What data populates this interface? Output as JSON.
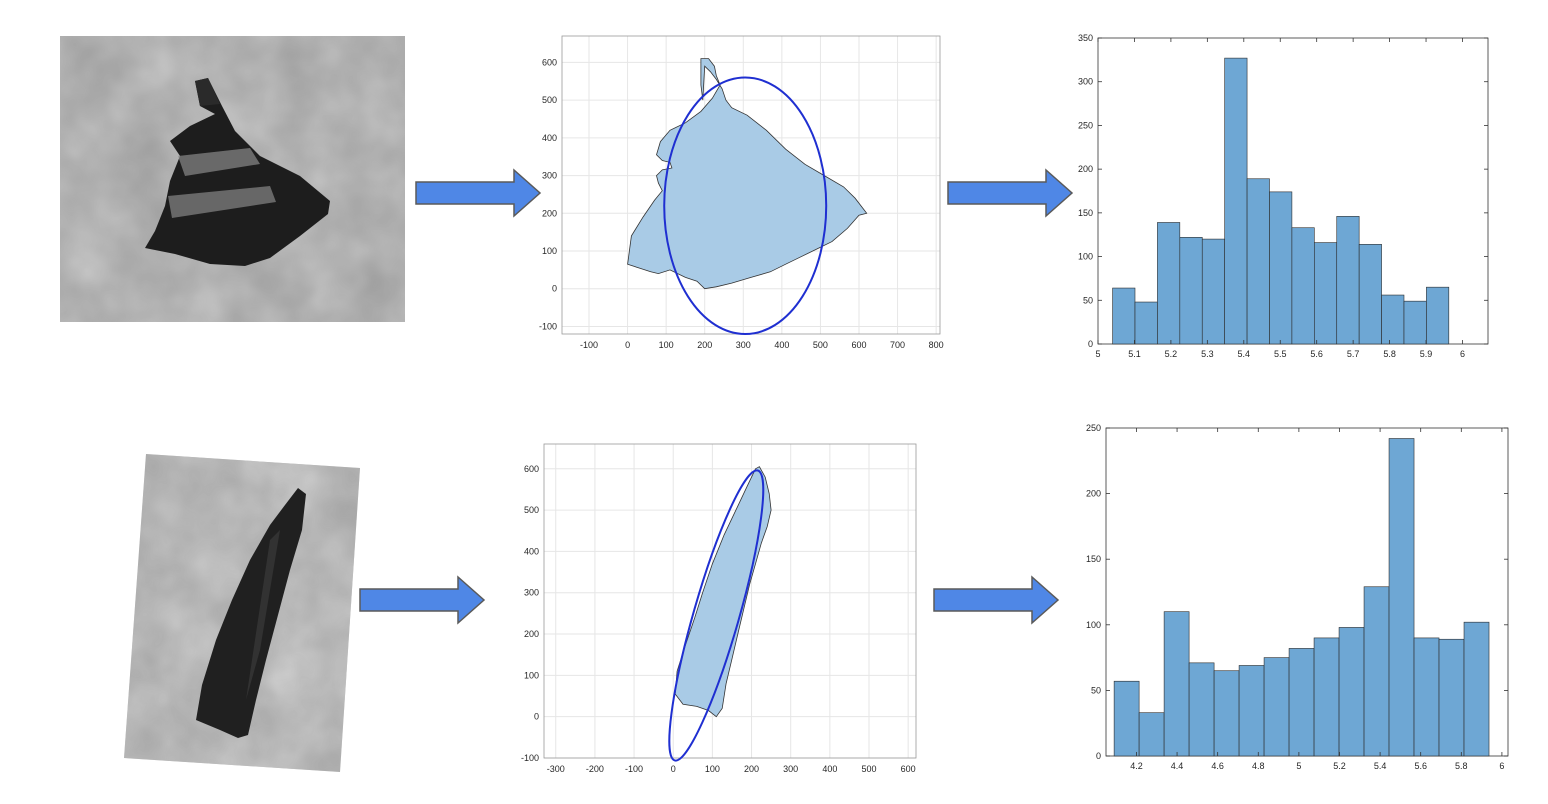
{
  "colors": {
    "arrow_fill": "#4f87e6",
    "arrow_stroke": "#5a5a5a",
    "shape_fill": "#a9cbe6",
    "ellipse_stroke": "#1f2fd1",
    "bar_fill": "#6ea7d4",
    "bar_stroke": "#2b2b2b",
    "grid": "#e6e6e6",
    "micrograph_bg": "#9a9a9a"
  },
  "rows": [
    {
      "image": {
        "icon": "grain-micrograph-top"
      },
      "shape_plot": {
        "xticks": [
          "-100",
          "0",
          "100",
          "200",
          "300",
          "400",
          "500",
          "600",
          "700",
          "800"
        ],
        "yticks": [
          "-100",
          "0",
          "100",
          "200",
          "300",
          "400",
          "500",
          "600"
        ],
        "xlim": [
          -170,
          810
        ],
        "ylim": [
          -120,
          670
        ],
        "outline": [
          [
            190,
            610
          ],
          [
            210,
            610
          ],
          [
            225,
            590
          ],
          [
            230,
            565
          ],
          [
            240,
            540
          ],
          [
            220,
            505
          ],
          [
            190,
            470
          ],
          [
            150,
            440
          ],
          [
            110,
            420
          ],
          [
            85,
            390
          ],
          [
            75,
            355
          ],
          [
            90,
            340
          ],
          [
            110,
            335
          ],
          [
            115,
            320
          ],
          [
            90,
            315
          ],
          [
            75,
            300
          ],
          [
            80,
            280
          ],
          [
            90,
            260
          ],
          [
            70,
            235
          ],
          [
            40,
            190
          ],
          [
            10,
            140
          ],
          [
            0,
            65
          ],
          [
            30,
            55
          ],
          [
            60,
            45
          ],
          [
            80,
            40
          ],
          [
            110,
            50
          ],
          [
            150,
            30
          ],
          [
            180,
            20
          ],
          [
            200,
            0
          ],
          [
            230,
            5
          ],
          [
            270,
            15
          ],
          [
            320,
            30
          ],
          [
            370,
            45
          ],
          [
            410,
            65
          ],
          [
            450,
            85
          ],
          [
            490,
            105
          ],
          [
            530,
            125
          ],
          [
            570,
            160
          ],
          [
            600,
            195
          ],
          [
            620,
            200
          ],
          [
            590,
            240
          ],
          [
            560,
            270
          ],
          [
            510,
            300
          ],
          [
            460,
            330
          ],
          [
            410,
            370
          ],
          [
            360,
            420
          ],
          [
            310,
            460
          ],
          [
            270,
            480
          ],
          [
            255,
            500
          ],
          [
            245,
            530
          ],
          [
            230,
            555
          ],
          [
            215,
            575
          ],
          [
            200,
            590
          ],
          [
            195,
            500
          ],
          [
            190,
            540
          ]
        ],
        "ellipse": {
          "cx": 305,
          "cy": 220,
          "rx": 210,
          "ry": 340,
          "angle": 0
        }
      },
      "histogram": {
        "xticks": [
          "5",
          "5.1",
          "5.2",
          "5.3",
          "5.4",
          "5.5",
          "5.6",
          "5.7",
          "5.8",
          "5.9",
          "6"
        ],
        "yticks": [
          "0",
          "50",
          "100",
          "150",
          "200",
          "250",
          "300",
          "350"
        ],
        "xlim": [
          5.0,
          6.07
        ],
        "ylim": [
          0,
          350
        ],
        "bin_start": 5.04,
        "bin_width": 0.0615,
        "counts": [
          64,
          48,
          139,
          122,
          120,
          327,
          189,
          174,
          133,
          116,
          146,
          114,
          56,
          49,
          65
        ]
      }
    },
    {
      "image": {
        "icon": "grain-micrograph-bottom"
      },
      "shape_plot": {
        "xticks": [
          "-300",
          "-200",
          "-100",
          "0",
          "100",
          "200",
          "300",
          "400",
          "500",
          "600"
        ],
        "yticks": [
          "-100",
          "0",
          "100",
          "200",
          "300",
          "400",
          "500",
          "600"
        ],
        "xlim": [
          -330,
          620
        ],
        "ylim": [
          -100,
          660
        ],
        "outline": [
          [
            210,
            600
          ],
          [
            220,
            605
          ],
          [
            235,
            580
          ],
          [
            245,
            540
          ],
          [
            250,
            500
          ],
          [
            240,
            460
          ],
          [
            225,
            420
          ],
          [
            210,
            370
          ],
          [
            195,
            320
          ],
          [
            180,
            260
          ],
          [
            165,
            200
          ],
          [
            150,
            140
          ],
          [
            135,
            80
          ],
          [
            125,
            20
          ],
          [
            110,
            0
          ],
          [
            90,
            15
          ],
          [
            60,
            25
          ],
          [
            25,
            30
          ],
          [
            5,
            55
          ],
          [
            10,
            110
          ],
          [
            30,
            170
          ],
          [
            55,
            240
          ],
          [
            75,
            300
          ],
          [
            100,
            370
          ],
          [
            130,
            440
          ],
          [
            160,
            500
          ],
          [
            190,
            560
          ]
        ],
        "ellipse": {
          "cx": 110,
          "cy": 245,
          "rx": 58,
          "ry": 365,
          "angle": 16
        }
      },
      "histogram": {
        "xticks": [
          "4.2",
          "4.4",
          "4.6",
          "4.8",
          "5",
          "5.2",
          "5.4",
          "5.6",
          "5.8",
          "6"
        ],
        "yticks": [
          "0",
          "50",
          "100",
          "150",
          "200",
          "250"
        ],
        "xlim": [
          4.05,
          6.03
        ],
        "ylim": [
          0,
          250
        ],
        "bin_start": 4.09,
        "bin_width": 0.1231,
        "counts": [
          57,
          33,
          110,
          71,
          65,
          69,
          75,
          82,
          90,
          98,
          129,
          242,
          90,
          89,
          102
        ]
      }
    }
  ]
}
